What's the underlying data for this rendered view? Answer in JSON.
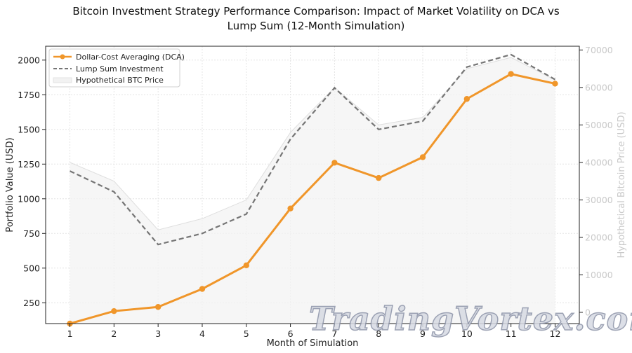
{
  "chart_data": {
    "type": "line",
    "title_lines": [
      "Bitcoin Investment Strategy Performance Comparison: Impact of Market Volatility on DCA vs",
      "Lump Sum (12-Month Simulation)"
    ],
    "xlabel": "Month of Simulation",
    "ylabel": "Portfolio Value (USD)",
    "y2label": "Hypothetical Bitcoin Price (USD)",
    "x": [
      1,
      2,
      3,
      4,
      5,
      6,
      7,
      8,
      9,
      10,
      11,
      12
    ],
    "x_tick_labels": [
      "1",
      "2",
      "3",
      "4",
      "5",
      "6",
      "7",
      "8",
      "9",
      "10",
      "11",
      "12"
    ],
    "ylim": [
      100,
      2100
    ],
    "y_ticks": [
      250,
      500,
      750,
      1000,
      1250,
      1500,
      1750,
      2000
    ],
    "y2lim": [
      -3000,
      71000
    ],
    "y2_ticks": [
      0,
      10000,
      20000,
      30000,
      40000,
      50000,
      60000,
      70000
    ],
    "series": [
      {
        "name": "Dollar-Cost Averaging (DCA)",
        "axis": "left",
        "color": "#f0962a",
        "style": "solid-marker",
        "values": [
          100,
          190,
          220,
          350,
          520,
          930,
          1260,
          1150,
          1300,
          1720,
          1900,
          1830
        ]
      },
      {
        "name": "Lump Sum Investment",
        "axis": "left",
        "color": "#757575",
        "style": "dashed",
        "values": [
          1200,
          1050,
          670,
          750,
          890,
          1430,
          1800,
          1500,
          1560,
          1950,
          2040,
          1860
        ]
      },
      {
        "name": "Hypothetical BTC Price",
        "axis": "right",
        "color": "#c8c8c8",
        "style": "area",
        "values": [
          40000,
          35000,
          22000,
          25000,
          30000,
          48000,
          60000,
          50000,
          52000,
          65000,
          68000,
          62000
        ]
      }
    ],
    "legend_position": "top-left",
    "grid": true
  },
  "watermark": "TradingVortex.com"
}
